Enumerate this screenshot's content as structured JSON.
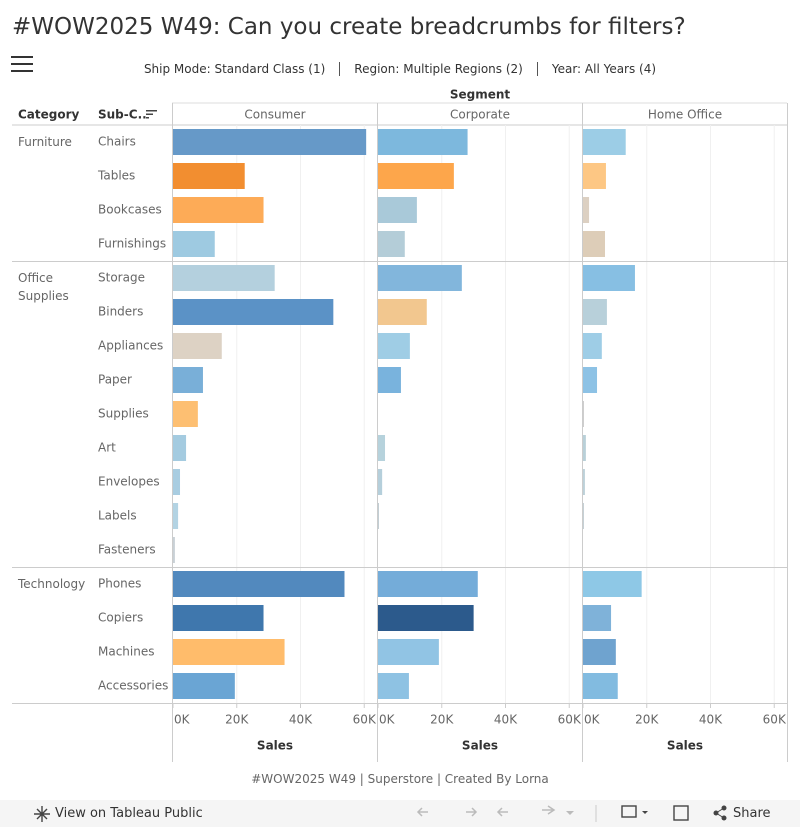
{
  "header": {
    "title": "#WOW2025 W49: Can you create breadcrumbs for filters?",
    "filters": [
      "Ship Mode: Standard Class (1)",
      "Region: Multiple Regions (2)",
      "Year: All Years (4)"
    ]
  },
  "chart_data": {
    "type": "bar",
    "orientation": "horizontal",
    "facet_label": "Segment",
    "row_headers": [
      "Category",
      "Sub-C.."
    ],
    "groups": [
      {
        "label": "Furniture",
        "categories": [
          "Chairs",
          "Tables",
          "Bookcases",
          "Furnishings"
        ]
      },
      {
        "label": "Office Supplies",
        "categories": [
          "Storage",
          "Binders",
          "Appliances",
          "Paper",
          "Supplies",
          "Art",
          "Envelopes",
          "Labels",
          "Fasteners"
        ]
      },
      {
        "label": "Technology",
        "categories": [
          "Phones",
          "Copiers",
          "Machines",
          "Accessories"
        ]
      }
    ],
    "x_label": "Sales",
    "xlim": [
      0,
      64000
    ],
    "xticks": [
      {
        "value": 0,
        "label": "0K"
      },
      {
        "value": 20000,
        "label": "20K"
      },
      {
        "value": 40000,
        "label": "40K"
      },
      {
        "value": 60000,
        "label": "60K"
      }
    ],
    "grid": true,
    "series": [
      {
        "name": "Consumer",
        "colors": [
          "#6699c8",
          "#f28e30",
          "#fdab57",
          "#9ecae1",
          "#b4d0de",
          "#5b92c6",
          "#ddd2c4",
          "#79afd8",
          "#fdbf72",
          "#a4cbe0",
          "#a9cde1",
          "#b3d3e3",
          "#c9d1d6",
          "#5289be",
          "#3f77ad",
          "#ffbc6b",
          "#6aa5d4"
        ],
        "values": [
          60600,
          22500,
          28400,
          13100,
          31900,
          50300,
          15300,
          9400,
          7800,
          4100,
          2200,
          1600,
          600,
          53800,
          28400,
          35000,
          19400
        ]
      },
      {
        "name": "Corporate",
        "colors": [
          "#7db8dd",
          "#fda64b",
          "#a9c9d9",
          "#b4cdd8",
          "#82b6dc",
          "#f2c78f",
          "#9fcde5",
          "#79b3dd",
          "#cccccc",
          "#b6d2dc",
          "#b5cfdb",
          "#c0ccd2",
          "#cccccc",
          "#74acd9",
          "#2c5a8c",
          "#91c4e4",
          "#8ec2e3"
        ],
        "values": [
          28100,
          23800,
          12200,
          8400,
          26300,
          15300,
          10000,
          7200,
          null,
          2200,
          1300,
          300,
          null,
          31300,
          30000,
          19100,
          9700
        ]
      },
      {
        "name": "Home Office",
        "colors": [
          "#9ccde6",
          "#fdc784",
          "#dcd0c2",
          "#ddcdb8",
          "#87bfe3",
          "#b8d0da",
          "#9ecde6",
          "#8dc2e5",
          "#cccccc",
          "#b9d0d8",
          "#bdd1d9",
          "#c3cfd4",
          "#cccccc",
          "#8ec8e6",
          "#7fb2d9",
          "#6fa3cf",
          "#82bbe0"
        ],
        "values": [
          13400,
          7200,
          1900,
          6900,
          16300,
          7500,
          5900,
          4400,
          300,
          900,
          600,
          300,
          null,
          18400,
          8800,
          10300,
          10900
        ]
      }
    ]
  },
  "footer": {
    "text": "#WOW2025 W49 | Superstore | Created By Lorna"
  },
  "toolbar": {
    "view": "View on Tableau Public",
    "share": "Share"
  }
}
